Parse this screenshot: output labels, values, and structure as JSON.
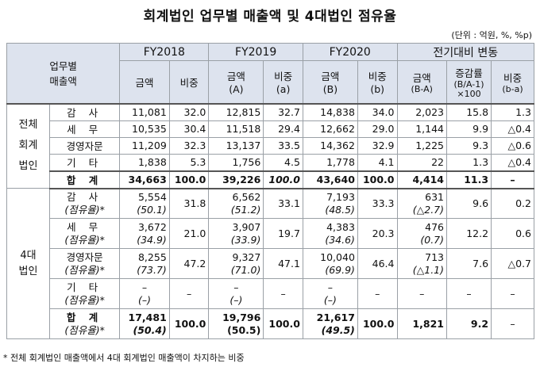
{
  "title": "회계법인 업무별 매출액 및 4대법인 점유율",
  "unit": "(단위 : 억원, %, %p)",
  "header": {
    "corner": [
      "업무별",
      "매출액"
    ],
    "years": [
      "FY2018",
      "FY2019",
      "FY2020"
    ],
    "change": "전기대비 변동",
    "amt": "금액",
    "share": "비중",
    "amt_a": "금액",
    "a_sub": "(A)",
    "share_a": "비중",
    "a2_sub": "(a)",
    "amt_b": "금액",
    "b_sub": "(B)",
    "share_b": "비중",
    "b2_sub": "(b)",
    "chg_amt": "금액",
    "chg_amt_sub": "(B-A)",
    "chg_rate": "증감률",
    "chg_rate_sub1": "(B/A-1)",
    "chg_rate_sub2": "×100",
    "chg_share": "비중",
    "chg_share_sub": "(b-a)"
  },
  "groups": {
    "all": "전체\n회계\n법인",
    "all_l1": "전체",
    "all_l2": "회계",
    "all_l3": "법인",
    "big4_l1": "4대",
    "big4_l2": "법인"
  },
  "all_rows": [
    {
      "name": "감 사",
      "v": [
        "11,081",
        "32.0",
        "12,815",
        "32.7",
        "14,838",
        "34.0",
        "2,023",
        "15.8",
        "1.3"
      ]
    },
    {
      "name": "세 무",
      "v": [
        "10,535",
        "30.4",
        "11,518",
        "29.4",
        "12,662",
        "29.0",
        "1,144",
        "9.9",
        "△0.4"
      ]
    },
    {
      "name": "경영자문",
      "v": [
        "11,209",
        "32.3",
        "13,137",
        "33.5",
        "14,362",
        "32.9",
        "1,225",
        "9.3",
        "△0.6"
      ]
    },
    {
      "name": "기 타",
      "v": [
        "1,838",
        "5.3",
        "1,756",
        "4.5",
        "1,778",
        "4.1",
        "22",
        "1.3",
        "△0.4"
      ]
    }
  ],
  "all_total": {
    "name": "합 계",
    "v": [
      "34,663",
      "100.0",
      "39,226",
      "100.0",
      "43,640",
      "100.0",
      "4,414",
      "11.3",
      "–"
    ]
  },
  "big4_rows": [
    {
      "name": "감 사",
      "sub": "(점유율)*",
      "v": [
        "5,554",
        "31.8",
        "6,562",
        "33.1",
        "7,193",
        "33.3",
        "631",
        "9.6",
        "0.2"
      ],
      "p": [
        "(50.1)",
        "(51.2)",
        "(48.5)",
        "(△2.7)"
      ]
    },
    {
      "name": "세 무",
      "sub": "(점유율)*",
      "v": [
        "3,672",
        "21.0",
        "3,907",
        "19.7",
        "4,383",
        "20.3",
        "476",
        "12.2",
        "0.6"
      ],
      "p": [
        "(34.9)",
        "(33.9)",
        "(34.6)",
        "(0.7)"
      ]
    },
    {
      "name": "경영자문",
      "sub": "(점유율)*",
      "v": [
        "8,255",
        "47.2",
        "9,327",
        "47.1",
        "10,040",
        "46.4",
        "713",
        "7.6",
        "△0.7"
      ],
      "p": [
        "(73.7)",
        "(71.0)",
        "(69.9)",
        "(△1.1)"
      ]
    },
    {
      "name": "기 타",
      "sub": "(점유율)*",
      "v": [
        "–",
        "–",
        "–",
        "–",
        "–",
        "–",
        "–",
        "–",
        "–"
      ],
      "p": [
        "(–)",
        "(–)",
        "(–)",
        "–"
      ]
    }
  ],
  "big4_total": {
    "name": "합 계",
    "sub": "(점유율)*",
    "v": [
      "17,481",
      "100.0",
      "19,796",
      "100.0",
      "21,617",
      "100.0",
      "1,821",
      "9.2",
      "–"
    ],
    "p": [
      "(50.4)",
      "(50.5)",
      "(49.5)",
      ""
    ]
  },
  "note": "* 전체 회계법인 매출액에서 4대 회계법인 매출액이 차지하는 비중"
}
